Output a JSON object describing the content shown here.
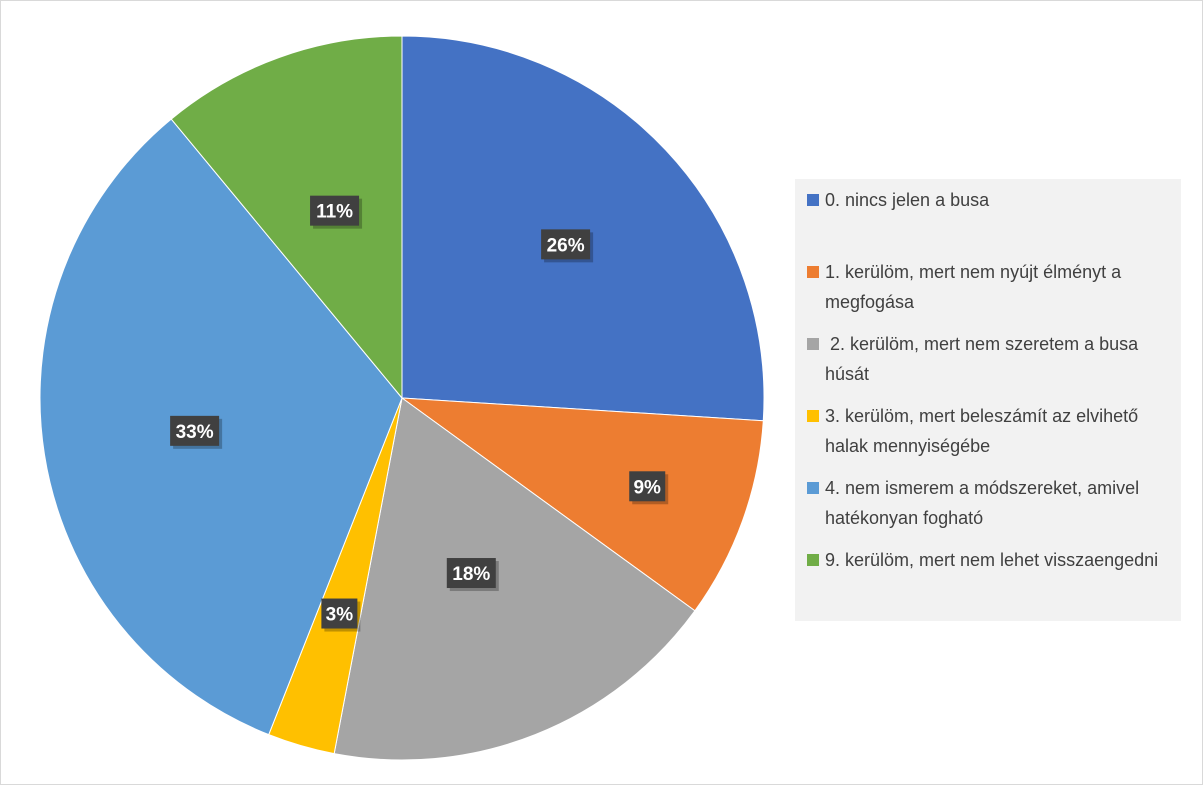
{
  "chart_data": {
    "type": "pie",
    "categories": [
      "0. nincs jelen a busa",
      "1. kerülöm, mert nem nyújt élményt a megfogása",
      " 2. kerülöm, mert nem szeretem a busa húsát",
      "3. kerülöm, mert beleszámít az elvihető halak mennyiségébe",
      "4. nem ismerem a módszereket, amivel hatékonyan fogható",
      "9. kerülöm, mert nem lehet visszaengedni"
    ],
    "values": [
      26,
      9,
      18,
      3,
      33,
      11
    ],
    "data_labels": [
      "26%",
      "9%",
      "18%",
      "3%",
      "33%",
      "11%"
    ],
    "colors": [
      "#4472c4",
      "#ed7d31",
      "#a5a5a5",
      "#ffc000",
      "#5b9bd5",
      "#70ad47"
    ],
    "legend_position": "right",
    "title": ""
  }
}
